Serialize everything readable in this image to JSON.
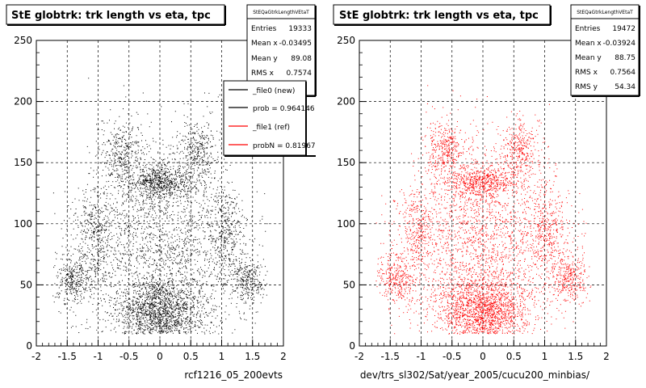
{
  "chart_data": [
    {
      "type": "scatter",
      "title": "StE globtrk: trk length vs eta, tpc",
      "xlabel": "rcf1216_05_200evts",
      "ylabel": "",
      "xlim": [
        -2,
        2
      ],
      "ylim": [
        0,
        250
      ],
      "x_ticks": [
        "-2",
        "-1.5",
        "-1",
        "-0.5",
        "0",
        "0.5",
        "1",
        "1.5",
        "2"
      ],
      "y_ticks": [
        "0",
        "50",
        "100",
        "150",
        "200",
        "250"
      ],
      "grid": true,
      "series_color": "#000000",
      "stats": {
        "header": "StEQaGtrkLengthVEtaT",
        "rows": [
          {
            "label": "Entries",
            "value": "19333"
          },
          {
            "label": "Mean x",
            "value": "-0.03495"
          },
          {
            "label": "Mean y",
            "value": "89.08"
          },
          {
            "label": "RMS x",
            "value": "0.7574"
          }
        ]
      },
      "legend": {
        "placement": "top-right",
        "entries": [
          {
            "label": "_file0 (new)",
            "color": "#000000"
          },
          {
            "label": "prob = 0.964146",
            "color": "#000000"
          },
          {
            "label": "_file1 (ref)",
            "color": "#ff0000"
          },
          {
            "label": "probN = 0.81967",
            "color": "#ff0000"
          }
        ]
      },
      "density_regions": [
        {
          "x": 0,
          "y": 28,
          "sx": 0.35,
          "sy": 14,
          "weight": 0.24
        },
        {
          "x": 0,
          "y": 135,
          "sx": 0.28,
          "sy": 7,
          "weight": 0.1
        },
        {
          "x": -0.6,
          "y": 160,
          "sx": 0.16,
          "sy": 12,
          "weight": 0.05
        },
        {
          "x": 0.6,
          "y": 160,
          "sx": 0.16,
          "sy": 12,
          "weight": 0.05
        },
        {
          "x": -1.4,
          "y": 55,
          "sx": 0.15,
          "sy": 10,
          "weight": 0.05
        },
        {
          "x": 1.4,
          "y": 55,
          "sx": 0.15,
          "sy": 10,
          "weight": 0.05
        },
        {
          "x": -1.05,
          "y": 95,
          "sx": 0.15,
          "sy": 18,
          "weight": 0.05
        },
        {
          "x": 1.05,
          "y": 95,
          "sx": 0.15,
          "sy": 18,
          "weight": 0.05
        },
        {
          "x": 0,
          "y": 80,
          "sx": 0.7,
          "sy": 45,
          "weight": 0.36
        }
      ],
      "rendered_points": 6000
    },
    {
      "type": "scatter",
      "title": "StE globtrk: trk length vs eta, tpc",
      "xlabel": "dev/trs_sl302/Sat/year_2005/cucu200_minbias/",
      "ylabel": "",
      "xlim": [
        -2,
        2
      ],
      "ylim": [
        0,
        250
      ],
      "x_ticks": [
        "-2",
        "-1.5",
        "-1",
        "-0.5",
        "0",
        "0.5",
        "1",
        "1.5",
        "2"
      ],
      "y_ticks": [
        "0",
        "50",
        "100",
        "150",
        "200",
        "250"
      ],
      "grid": true,
      "series_color": "#ff0000",
      "stats": {
        "header": "StEQaGtrkLengthVEtaT",
        "rows": [
          {
            "label": "Entries",
            "value": "19472"
          },
          {
            "label": "Mean x",
            "value": "-0.03924"
          },
          {
            "label": "Mean y",
            "value": "88.75"
          },
          {
            "label": "RMS x",
            "value": "0.7564"
          },
          {
            "label": "RMS y",
            "value": "54.34"
          }
        ]
      },
      "density_regions": [
        {
          "x": 0,
          "y": 28,
          "sx": 0.35,
          "sy": 14,
          "weight": 0.24
        },
        {
          "x": 0,
          "y": 135,
          "sx": 0.28,
          "sy": 7,
          "weight": 0.1
        },
        {
          "x": -0.6,
          "y": 160,
          "sx": 0.16,
          "sy": 12,
          "weight": 0.05
        },
        {
          "x": 0.6,
          "y": 160,
          "sx": 0.16,
          "sy": 12,
          "weight": 0.05
        },
        {
          "x": -1.4,
          "y": 55,
          "sx": 0.15,
          "sy": 10,
          "weight": 0.05
        },
        {
          "x": 1.4,
          "y": 55,
          "sx": 0.15,
          "sy": 10,
          "weight": 0.05
        },
        {
          "x": -1.05,
          "y": 95,
          "sx": 0.15,
          "sy": 18,
          "weight": 0.05
        },
        {
          "x": 1.05,
          "y": 95,
          "sx": 0.15,
          "sy": 18,
          "weight": 0.05
        },
        {
          "x": 0,
          "y": 80,
          "sx": 0.7,
          "sy": 45,
          "weight": 0.36
        }
      ],
      "rendered_points": 6000
    }
  ]
}
